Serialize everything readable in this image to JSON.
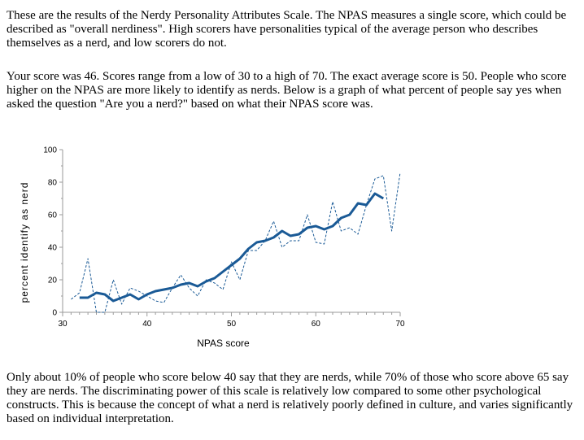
{
  "text": {
    "intro": "These are the results of the Nerdy Personality Attributes Scale. The NPAS measures a single score, which could be described as \"overall nerdiness\". High scorers have personalities typical of the average person who describes themselves as a nerd, and low scorers do not.",
    "score": "Your score was 46. Scores range from a low of 30 to a high of 70. The exact average score is 50. People who score higher on the NPAS are more likely to identify as nerds. Below is a graph of what percent of people say yes when asked the question \"Are you a nerd?\" based on what their NPAS score was.",
    "conclusion": "Only about 10% of people who score below 40 say that they are nerds, while 70% of those who score above 65 say they are nerds. The discriminating power of this scale is relatively low compared to some other psychological constructs. This is because the concept of what a nerd is relatively poorly defined in culture, and varies significantly based on individual interpretation."
  },
  "chart_data": {
    "type": "line",
    "xlabel": "NPAS score",
    "ylabel": "percent identify as nerd",
    "xlim": [
      30,
      70
    ],
    "ylim": [
      0,
      100
    ],
    "xticks": [
      30,
      40,
      50,
      60,
      70
    ],
    "yticks": [
      0,
      20,
      40,
      60,
      80,
      100
    ],
    "grid": false,
    "colors": {
      "line": "#1a5a96"
    },
    "series": [
      {
        "style": "dashed-thin",
        "x": [
          31,
          32,
          33,
          34,
          35,
          36,
          37,
          38,
          39,
          40,
          41,
          42,
          43,
          44,
          45,
          46,
          47,
          48,
          49,
          50,
          51,
          52,
          53,
          54,
          55,
          56,
          57,
          58,
          59,
          60,
          61,
          62,
          63,
          64,
          65,
          66,
          67,
          68,
          69,
          70
        ],
        "y": [
          8,
          12,
          33,
          0,
          0,
          20,
          5,
          15,
          13,
          10,
          7,
          6,
          15,
          23,
          15,
          10,
          20,
          18,
          14,
          31,
          20,
          38,
          38,
          44,
          56,
          40,
          44,
          44,
          60,
          43,
          42,
          68,
          50,
          52,
          48,
          66,
          82,
          84,
          50,
          86
        ]
      },
      {
        "style": "solid-thick",
        "x": [
          32,
          33,
          34,
          35,
          36,
          37,
          38,
          39,
          40,
          41,
          42,
          43,
          44,
          45,
          46,
          47,
          48,
          49,
          50,
          51,
          52,
          53,
          54,
          55,
          56,
          57,
          58,
          59,
          60,
          61,
          62,
          63,
          64,
          65,
          66,
          67,
          68
        ],
        "y": [
          9,
          9,
          12,
          11,
          7,
          9,
          11,
          8,
          11,
          13,
          14,
          15,
          17,
          18,
          16,
          19,
          21,
          25,
          29,
          33,
          39,
          43,
          44,
          46,
          50,
          47,
          48,
          52,
          53,
          51,
          53,
          58,
          60,
          67,
          66,
          73,
          70
        ]
      }
    ]
  }
}
